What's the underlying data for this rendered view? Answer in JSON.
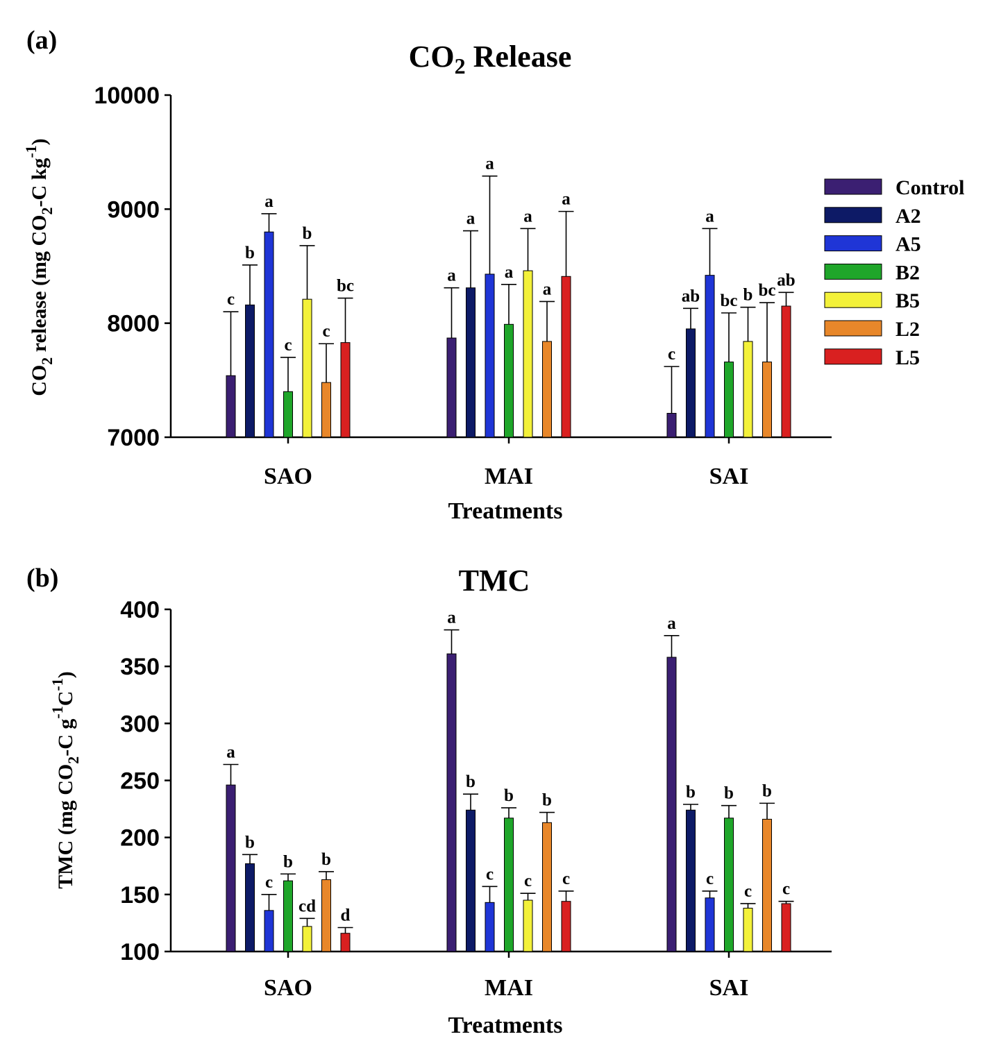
{
  "figure": {
    "legend_title": "",
    "legend": [
      {
        "name": "Control",
        "color": "#3b1f72"
      },
      {
        "name": "A2",
        "color": "#0d1a66"
      },
      {
        "name": "A5",
        "color": "#1f35d6"
      },
      {
        "name": "B2",
        "color": "#1fa62a"
      },
      {
        "name": "B5",
        "color": "#f3f13a"
      },
      {
        "name": "L2",
        "color": "#e8872a"
      },
      {
        "name": "L5",
        "color": "#d92020"
      }
    ]
  },
  "chart_data": [
    {
      "type": "bar",
      "panel_label": "(a)",
      "title": "CO2 Release",
      "title_parts": {
        "prefix": "CO",
        "sub": "2",
        "suffix": " Release"
      },
      "xlabel": "Treatments",
      "ylabel": "CO2 release (mg CO2-C kg-1)",
      "ylabel_parts": {
        "a": "CO",
        "b": "2",
        "c": " release (mg CO",
        "d": "2",
        "e": "-C kg",
        "f": "-1",
        "g": ")"
      },
      "ylim": [
        7000,
        10000
      ],
      "yticks": [
        "7000",
        "8000",
        "9000",
        "10000"
      ],
      "ytick_values": [
        7000,
        8000,
        9000,
        10000
      ],
      "categories": [
        "SAO",
        "MAI",
        "SAI"
      ],
      "legend_position": "right",
      "series": [
        {
          "name": "Control",
          "values": [
            7540,
            7870,
            7210
          ],
          "errors": [
            560,
            440,
            410
          ],
          "letters": [
            "c",
            "a",
            "c"
          ]
        },
        {
          "name": "A2",
          "values": [
            8160,
            8310,
            7950
          ],
          "errors": [
            350,
            500,
            180
          ],
          "letters": [
            "b",
            "a",
            "ab"
          ]
        },
        {
          "name": "A5",
          "values": [
            8800,
            8430,
            8420
          ],
          "errors": [
            160,
            860,
            410
          ],
          "letters": [
            "a",
            "a",
            "a"
          ]
        },
        {
          "name": "B2",
          "values": [
            7400,
            7990,
            7660
          ],
          "errors": [
            300,
            350,
            430
          ],
          "letters": [
            "c",
            "a",
            "bc"
          ]
        },
        {
          "name": "B5",
          "values": [
            8210,
            8460,
            7840
          ],
          "errors": [
            470,
            370,
            300
          ],
          "letters": [
            "b",
            "a",
            "b"
          ]
        },
        {
          "name": "L2",
          "values": [
            7480,
            7840,
            7660
          ],
          "errors": [
            340,
            350,
            520
          ],
          "letters": [
            "c",
            "a",
            "bc"
          ]
        },
        {
          "name": "L5",
          "values": [
            7830,
            8410,
            8150
          ],
          "errors": [
            390,
            570,
            120
          ],
          "letters": [
            "bc",
            "a",
            "ab"
          ]
        }
      ]
    },
    {
      "type": "bar",
      "panel_label": "(b)",
      "title": "TMC",
      "xlabel": "Treatments",
      "ylabel": "TMC (mg CO2-C g-1 C-1)",
      "ylabel_parts": {
        "a": "TMC (mg CO",
        "b": "2",
        "c": "-C g",
        "d": "-1",
        "e": "C",
        "f": "-1",
        "g": ")"
      },
      "ylim": [
        100,
        400
      ],
      "yticks": [
        "100",
        "150",
        "200",
        "250",
        "300",
        "350",
        "400"
      ],
      "ytick_values": [
        100,
        150,
        200,
        250,
        300,
        350,
        400
      ],
      "categories": [
        "SAO",
        "MAI",
        "SAI"
      ],
      "series": [
        {
          "name": "Control",
          "values": [
            246,
            361,
            358
          ],
          "errors": [
            18,
            21,
            19
          ],
          "letters": [
            "a",
            "a",
            "a"
          ]
        },
        {
          "name": "A2",
          "values": [
            177,
            224,
            224
          ],
          "errors": [
            8,
            14,
            5
          ],
          "letters": [
            "b",
            "b",
            "b"
          ]
        },
        {
          "name": "A5",
          "values": [
            136,
            143,
            147
          ],
          "errors": [
            14,
            14,
            6
          ],
          "letters": [
            "c",
            "c",
            "c"
          ]
        },
        {
          "name": "B2",
          "values": [
            162,
            217,
            217
          ],
          "errors": [
            6,
            9,
            11
          ],
          "letters": [
            "b",
            "b",
            "b"
          ]
        },
        {
          "name": "B5",
          "values": [
            122,
            145,
            138
          ],
          "errors": [
            7,
            6,
            4
          ],
          "letters": [
            "cd",
            "c",
            "c"
          ]
        },
        {
          "name": "L2",
          "values": [
            163,
            213,
            216
          ],
          "errors": [
            7,
            9,
            14
          ],
          "letters": [
            "b",
            "b",
            "b"
          ]
        },
        {
          "name": "L5",
          "values": [
            116,
            144,
            142
          ],
          "errors": [
            5,
            9,
            2
          ],
          "letters": [
            "d",
            "c",
            "c"
          ]
        }
      ]
    }
  ]
}
